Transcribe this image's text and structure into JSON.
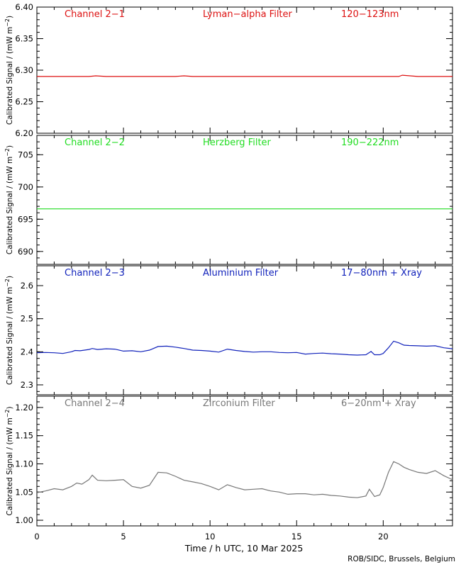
{
  "credit": "ROB/SIDC, Brussels, Belgium",
  "chart_data": [
    {
      "type": "line",
      "channel": "Channel 2−1",
      "filter": "Lyman−alpha Filter",
      "band": "120−123nm",
      "color": "#dd1111",
      "ylabel_main": "Calibrated Signal / (mW m",
      "ylabel_sup": "−2",
      "ylabel_end": ")",
      "ylim": [
        6.2,
        6.4
      ],
      "yticks": [
        6.2,
        6.25,
        6.3,
        6.35,
        6.4
      ],
      "ytick_labels": [
        "6.20",
        "6.25",
        "6.30",
        "6.35",
        "6.40"
      ],
      "xlim": [
        0,
        24
      ],
      "series": [
        {
          "x": [
            0,
            1,
            2,
            3,
            3.4,
            4,
            5,
            6,
            7,
            8,
            8.5,
            9,
            10,
            11,
            12,
            13,
            14,
            15,
            16,
            17,
            18,
            19,
            20,
            20.9,
            21.1,
            22,
            23,
            24
          ],
          "values": [
            6.29,
            6.29,
            6.29,
            6.29,
            6.291,
            6.29,
            6.29,
            6.29,
            6.29,
            6.29,
            6.291,
            6.29,
            6.29,
            6.29,
            6.29,
            6.29,
            6.29,
            6.29,
            6.29,
            6.29,
            6.29,
            6.29,
            6.29,
            6.29,
            6.292,
            6.29,
            6.29,
            6.29
          ]
        }
      ]
    },
    {
      "type": "line",
      "channel": "Channel 2−2",
      "filter": "Herzberg Filter",
      "band": "190−222nm",
      "color": "#22dd22",
      "ylabel_main": "Calibrated Signal / (mW m",
      "ylabel_sup": "−2",
      "ylabel_end": ")",
      "ylim": [
        688,
        708
      ],
      "yticks": [
        690,
        695,
        700,
        705
      ],
      "ytick_labels": [
        "690",
        "695",
        "700",
        "705"
      ],
      "xlim": [
        0,
        24
      ],
      "series": [
        {
          "x": [
            0,
            2,
            4,
            6,
            8,
            10,
            12,
            14,
            16,
            18,
            20,
            22,
            24
          ],
          "values": [
            696.6,
            696.6,
            696.6,
            696.6,
            696.6,
            696.6,
            696.6,
            696.6,
            696.6,
            696.6,
            696.6,
            696.6,
            696.6
          ]
        }
      ]
    },
    {
      "type": "line",
      "channel": "Channel 2−3",
      "filter": "Aluminium Filter",
      "band": "17−80nm + Xray",
      "color": "#1122bb",
      "ylabel_main": "Calibrated Signal / (mW m",
      "ylabel_sup": "−2",
      "ylabel_end": ")",
      "ylim": [
        2.27,
        2.66
      ],
      "yticks": [
        2.3,
        2.4,
        2.5,
        2.6
      ],
      "ytick_labels": [
        "2.3",
        "2.4",
        "2.5",
        "2.6"
      ],
      "xlim": [
        0,
        24
      ],
      "series": [
        {
          "x": [
            0,
            0.5,
            1,
            1.5,
            2,
            2.2,
            2.5,
            3,
            3.2,
            3.5,
            4,
            4.5,
            5,
            5.5,
            6,
            6.5,
            7,
            7.5,
            8,
            8.5,
            9,
            9.5,
            10,
            10.5,
            11,
            11.5,
            12,
            12.5,
            13,
            13.5,
            14,
            14.5,
            15,
            15.5,
            16,
            16.5,
            17,
            17.5,
            18,
            18.5,
            19,
            19.3,
            19.5,
            19.8,
            20,
            20.3,
            20.6,
            20.9,
            21.2,
            21.5,
            22,
            22.5,
            23,
            23.5,
            24
          ],
          "values": [
            2.397,
            2.398,
            2.397,
            2.395,
            2.4,
            2.404,
            2.403,
            2.407,
            2.41,
            2.407,
            2.409,
            2.408,
            2.402,
            2.403,
            2.4,
            2.405,
            2.416,
            2.417,
            2.414,
            2.41,
            2.405,
            2.404,
            2.402,
            2.399,
            2.408,
            2.404,
            2.401,
            2.399,
            2.4,
            2.4,
            2.398,
            2.397,
            2.398,
            2.393,
            2.395,
            2.396,
            2.394,
            2.393,
            2.391,
            2.39,
            2.391,
            2.401,
            2.391,
            2.391,
            2.395,
            2.412,
            2.432,
            2.427,
            2.42,
            2.419,
            2.418,
            2.417,
            2.418,
            2.412,
            2.409
          ]
        }
      ]
    },
    {
      "type": "line",
      "channel": "Channel 2−4",
      "filter": "Zirconium Filter",
      "band": "6−20nm + Xray",
      "color": "#777777",
      "ylabel_main": "Calibrated Signal / (mW m",
      "ylabel_sup": "−2",
      "ylabel_end": ")",
      "ylim": [
        0.99,
        1.22
      ],
      "yticks": [
        1.0,
        1.05,
        1.1,
        1.15,
        1.2
      ],
      "ytick_labels": [
        "1.00",
        "1.05",
        "1.10",
        "1.15",
        "1.20"
      ],
      "xlim": [
        0,
        24
      ],
      "series": [
        {
          "x": [
            0,
            0.5,
            1,
            1.5,
            2,
            2.3,
            2.6,
            3,
            3.2,
            3.5,
            4,
            4.5,
            5,
            5.5,
            6,
            6.5,
            7,
            7.5,
            8,
            8.5,
            9,
            9.5,
            10,
            10.5,
            11,
            11.5,
            12,
            12.5,
            13,
            13.5,
            14,
            14.5,
            15,
            15.5,
            16,
            16.5,
            17,
            17.5,
            18,
            18.5,
            19,
            19.2,
            19.5,
            19.8,
            20,
            20.3,
            20.6,
            20.9,
            21.2,
            21.5,
            22,
            22.5,
            23,
            23.5,
            24
          ],
          "values": [
            1.049,
            1.052,
            1.056,
            1.054,
            1.06,
            1.066,
            1.064,
            1.072,
            1.08,
            1.071,
            1.07,
            1.071,
            1.072,
            1.06,
            1.057,
            1.062,
            1.085,
            1.084,
            1.078,
            1.071,
            1.068,
            1.065,
            1.06,
            1.054,
            1.063,
            1.058,
            1.054,
            1.055,
            1.056,
            1.052,
            1.05,
            1.046,
            1.047,
            1.047,
            1.045,
            1.046,
            1.044,
            1.043,
            1.041,
            1.04,
            1.043,
            1.055,
            1.042,
            1.045,
            1.058,
            1.085,
            1.104,
            1.1,
            1.094,
            1.09,
            1.085,
            1.083,
            1.088,
            1.079,
            1.072
          ]
        }
      ]
    }
  ],
  "x_axis": {
    "label": "Time / h UTC, 10 Mar 2025",
    "xlim": [
      0,
      24
    ],
    "ticks": [
      0,
      5,
      10,
      15,
      20
    ],
    "tick_labels": [
      "0",
      "5",
      "10",
      "15",
      "20"
    ]
  }
}
